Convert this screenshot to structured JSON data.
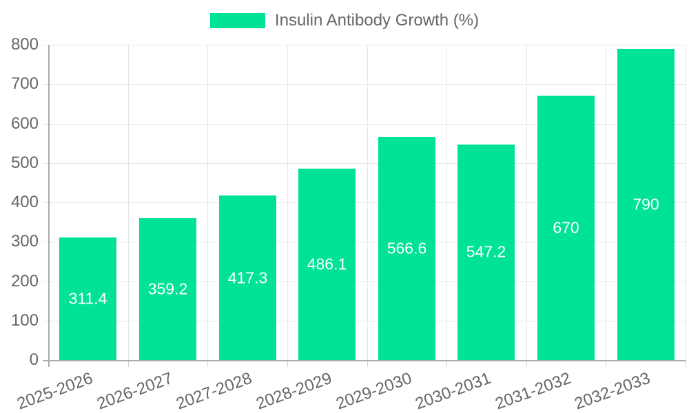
{
  "chart_data": {
    "type": "bar",
    "title": "Insulin Antibody Growth (%)",
    "legend": {
      "label": "Insulin Antibody Growth (%)",
      "position": "top"
    },
    "categories": [
      "2025-2026",
      "2026-2027",
      "2027-2028",
      "2028-2029",
      "2029-2030",
      "2030-2031",
      "2031-2032",
      "2032-2033"
    ],
    "values": [
      311.4,
      359.2,
      417.3,
      486.1,
      566.6,
      547.2,
      670,
      790
    ],
    "data_labels": [
      "311.4",
      "359.2",
      "417.3",
      "486.1",
      "566.6",
      "547.2",
      "670",
      "790"
    ],
    "xlabel": "",
    "ylabel": "",
    "ylim": [
      0,
      800
    ],
    "yticks": [
      0,
      100,
      200,
      300,
      400,
      500,
      600,
      700,
      800
    ],
    "grid": true,
    "colors": {
      "bar": "#00E396",
      "grid": "#e6e6e6",
      "axis": "#ababab",
      "tick_label": "#666666",
      "data_label": "#ffffff",
      "background": "#ffffff"
    }
  }
}
